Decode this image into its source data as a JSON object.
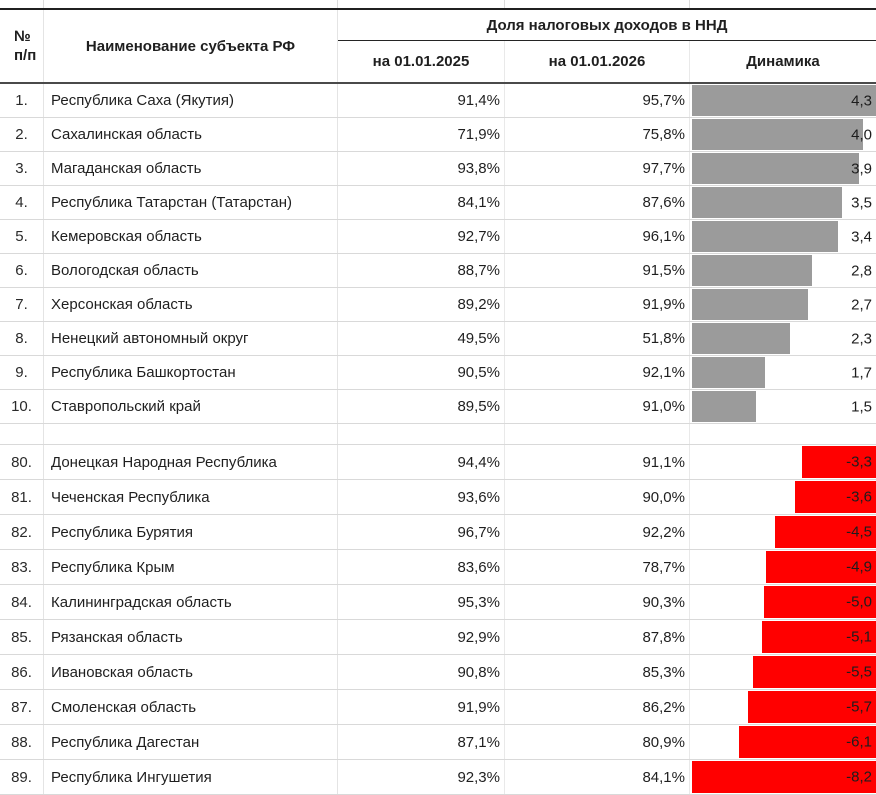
{
  "table": {
    "header": {
      "num_line1": "№",
      "num_line2": "п/п",
      "name": "Наименование субъекта РФ",
      "group": "Доля налоговых доходов в ННД",
      "sub_2025": "на 01.01.2025",
      "sub_2026": "на 01.01.2026",
      "sub_dynamics": "Динамика"
    }
  },
  "chart_data": {
    "type": "table",
    "title": "Доля налоговых доходов в ННД",
    "columns": [
      "№ п/п",
      "Наименование субъекта РФ",
      "на 01.01.2025",
      "на 01.01.2026",
      "Динамика"
    ],
    "bar_axis": {
      "positive_full_scale": 4.3,
      "negative_full_scale": -8.2,
      "positive_color": "#9b9b9b",
      "negative_color": "#ff0000",
      "note": "gray bars grow left-to-right from column start; red bars grow right-to-left from column end"
    },
    "sections": [
      {
        "name": "top-10",
        "rows": [
          {
            "rank": "1.",
            "region": "Республика Саха (Якутия)",
            "share_2025": "91,4%",
            "share_2026": "95,7%",
            "dynamics_pp": 4.3,
            "dynamics_label": "4,3"
          },
          {
            "rank": "2.",
            "region": "Сахалинская область",
            "share_2025": "71,9%",
            "share_2026": "75,8%",
            "dynamics_pp": 4.0,
            "dynamics_label": "4,0"
          },
          {
            "rank": "3.",
            "region": "Магаданская область",
            "share_2025": "93,8%",
            "share_2026": "97,7%",
            "dynamics_pp": 3.9,
            "dynamics_label": "3,9"
          },
          {
            "rank": "4.",
            "region": "Республика Татарстан (Татарстан)",
            "share_2025": "84,1%",
            "share_2026": "87,6%",
            "dynamics_pp": 3.5,
            "dynamics_label": "3,5"
          },
          {
            "rank": "5.",
            "region": "Кемеровская область",
            "share_2025": "92,7%",
            "share_2026": "96,1%",
            "dynamics_pp": 3.4,
            "dynamics_label": "3,4"
          },
          {
            "rank": "6.",
            "region": "Вологодская область",
            "share_2025": "88,7%",
            "share_2026": "91,5%",
            "dynamics_pp": 2.8,
            "dynamics_label": "2,8"
          },
          {
            "rank": "7.",
            "region": "Херсонская область",
            "share_2025": "89,2%",
            "share_2026": "91,9%",
            "dynamics_pp": 2.7,
            "dynamics_label": "2,7"
          },
          {
            "rank": "8.",
            "region": "Ненецкий автономный округ",
            "share_2025": "49,5%",
            "share_2026": "51,8%",
            "dynamics_pp": 2.3,
            "dynamics_label": "2,3"
          },
          {
            "rank": "9.",
            "region": "Республика Башкортостан",
            "share_2025": "90,5%",
            "share_2026": "92,1%",
            "dynamics_pp": 1.7,
            "dynamics_label": "1,7"
          },
          {
            "rank": "10.",
            "region": "Ставропольский край",
            "share_2025": "89,5%",
            "share_2026": "91,0%",
            "dynamics_pp": 1.5,
            "dynamics_label": "1,5"
          }
        ]
      },
      {
        "name": "bottom-10",
        "rows": [
          {
            "rank": "80.",
            "region": "Донецкая Народная Республика",
            "share_2025": "94,4%",
            "share_2026": "91,1%",
            "dynamics_pp": -3.3,
            "dynamics_label": "-3,3"
          },
          {
            "rank": "81.",
            "region": "Чеченская Республика",
            "share_2025": "93,6%",
            "share_2026": "90,0%",
            "dynamics_pp": -3.6,
            "dynamics_label": "-3,6"
          },
          {
            "rank": "82.",
            "region": "Республика Бурятия",
            "share_2025": "96,7%",
            "share_2026": "92,2%",
            "dynamics_pp": -4.5,
            "dynamics_label": "-4,5"
          },
          {
            "rank": "83.",
            "region": "Республика Крым",
            "share_2025": "83,6%",
            "share_2026": "78,7%",
            "dynamics_pp": -4.9,
            "dynamics_label": "-4,9"
          },
          {
            "rank": "84.",
            "region": "Калининградская область",
            "share_2025": "95,3%",
            "share_2026": "90,3%",
            "dynamics_pp": -5.0,
            "dynamics_label": "-5,0"
          },
          {
            "rank": "85.",
            "region": "Рязанская область",
            "share_2025": "92,9%",
            "share_2026": "87,8%",
            "dynamics_pp": -5.1,
            "dynamics_label": "-5,1"
          },
          {
            "rank": "86.",
            "region": "Ивановская область",
            "share_2025": "90,8%",
            "share_2026": "85,3%",
            "dynamics_pp": -5.5,
            "dynamics_label": "-5,5"
          },
          {
            "rank": "87.",
            "region": "Смоленская область",
            "share_2025": "91,9%",
            "share_2026": "86,2%",
            "dynamics_pp": -5.7,
            "dynamics_label": "-5,7"
          },
          {
            "rank": "88.",
            "region": "Республика Дагестан",
            "share_2025": "87,1%",
            "share_2026": "80,9%",
            "dynamics_pp": -6.1,
            "dynamics_label": "-6,1"
          },
          {
            "rank": "89.",
            "region": "Республика Ингушетия",
            "share_2025": "92,3%",
            "share_2026": "84,1%",
            "dynamics_pp": -8.2,
            "dynamics_label": "-8,2"
          }
        ]
      }
    ]
  }
}
